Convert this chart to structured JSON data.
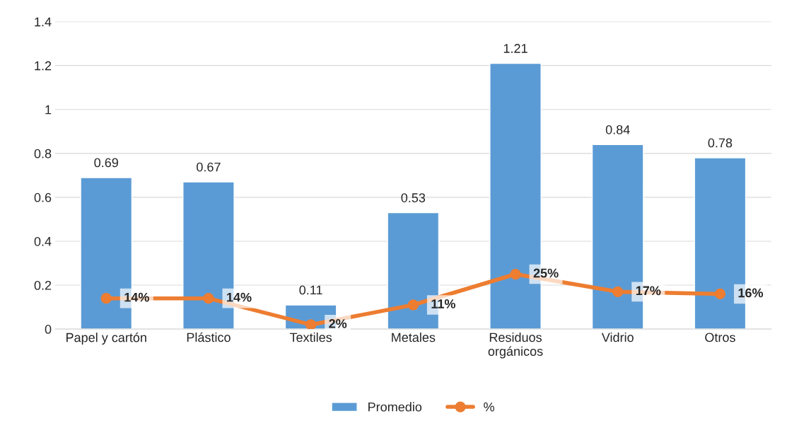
{
  "chart_data": {
    "type": "bar",
    "categories": [
      "Papel y cartón",
      "Plástico",
      "Textiles",
      "Metales",
      "Residuos\norgánicos",
      "Vidrio",
      "Otros"
    ],
    "series": [
      {
        "name": "Promedio",
        "color": "#5b9bd5",
        "values": [
          0.69,
          0.67,
          0.11,
          0.53,
          1.21,
          0.84,
          0.78
        ],
        "value_labels": [
          "0.69",
          "0.67",
          "0.11",
          "0.53",
          "1.21",
          "0.84",
          "0.78"
        ]
      },
      {
        "name": "%",
        "type": "line",
        "color": "#ed7d31",
        "marker": "circle",
        "values": [
          0.14,
          0.14,
          0.02,
          0.11,
          0.25,
          0.17,
          0.16
        ],
        "value_labels": [
          "14%",
          "14%",
          "2%",
          "11%",
          "25%",
          "17%",
          "16%"
        ]
      }
    ],
    "ylim": [
      0,
      1.4
    ],
    "yticks": [
      0,
      0.2,
      0.4,
      0.6,
      0.8,
      1,
      1.2,
      1.4
    ],
    "grid": "y",
    "legend": "bottom"
  }
}
